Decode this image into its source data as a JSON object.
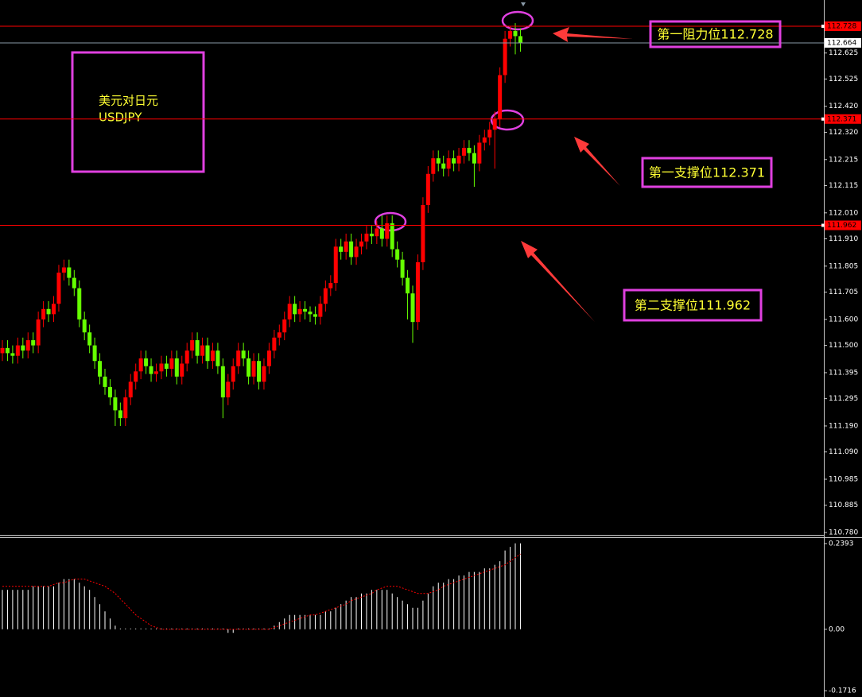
{
  "chart_data": [
    {
      "type": "candlestick",
      "title": "美元对日元",
      "subtitle": "USDJPY",
      "up_color": "#ff0000",
      "down_color": "#66ff00",
      "open": [
        111.47,
        111.49,
        111.47,
        111.46,
        111.5,
        111.48,
        111.52,
        111.5,
        111.6,
        111.64,
        111.62,
        111.66,
        111.78,
        111.8,
        111.76,
        111.72,
        111.6,
        111.55,
        111.5,
        111.44,
        111.38,
        111.34,
        111.3,
        111.25,
        111.22,
        111.3,
        111.36,
        111.4,
        111.45,
        111.42,
        111.39,
        111.4,
        111.43,
        111.41,
        111.45,
        111.38,
        111.43,
        111.48,
        111.52,
        111.46,
        111.5,
        111.44,
        111.48,
        111.42,
        111.3,
        111.36,
        111.42,
        111.48,
        111.45,
        111.38,
        111.44,
        111.36,
        111.42,
        111.48,
        111.53,
        111.55,
        111.6,
        111.66,
        111.62,
        111.64,
        111.63,
        111.62,
        111.61,
        111.66,
        111.72,
        111.74,
        111.88,
        111.86,
        111.9,
        111.84,
        111.88,
        111.9,
        111.93,
        111.92,
        111.95,
        111.91,
        111.97,
        111.87,
        111.83,
        111.76,
        111.7,
        111.59,
        111.82,
        112.04,
        112.16,
        112.22,
        112.2,
        112.18,
        112.22,
        112.2,
        112.23,
        112.26,
        112.24,
        112.2,
        112.28,
        112.3,
        112.33,
        112.37,
        112.54,
        112.68,
        112.71,
        112.69
      ],
      "high": [
        111.52,
        111.52,
        111.5,
        111.53,
        111.53,
        111.55,
        111.55,
        111.63,
        111.67,
        111.67,
        111.69,
        111.81,
        111.83,
        111.83,
        111.79,
        111.75,
        111.63,
        111.58,
        111.53,
        111.47,
        111.41,
        111.37,
        111.33,
        111.28,
        111.33,
        111.39,
        111.43,
        111.48,
        111.48,
        111.45,
        111.43,
        111.46,
        111.46,
        111.48,
        111.48,
        111.46,
        111.51,
        111.55,
        111.55,
        111.53,
        111.53,
        111.51,
        111.51,
        111.45,
        111.39,
        111.45,
        111.51,
        111.51,
        111.48,
        111.47,
        111.47,
        111.45,
        111.51,
        111.56,
        111.58,
        111.63,
        111.69,
        111.69,
        111.67,
        111.67,
        111.65,
        111.65,
        111.69,
        111.75,
        111.77,
        111.91,
        111.91,
        111.93,
        111.93,
        111.91,
        111.93,
        111.96,
        111.96,
        111.98,
        112.0,
        112.0,
        112.0,
        111.9,
        111.86,
        111.79,
        111.73,
        111.85,
        112.07,
        112.19,
        112.25,
        112.25,
        112.23,
        112.25,
        112.25,
        112.26,
        112.29,
        112.29,
        112.27,
        112.31,
        112.33,
        112.36,
        112.4,
        112.57,
        112.71,
        112.728,
        112.74,
        112.72
      ],
      "low": [
        111.44,
        111.44,
        111.43,
        111.43,
        111.45,
        111.45,
        111.47,
        111.47,
        111.57,
        111.59,
        111.59,
        111.63,
        111.75,
        111.73,
        111.69,
        111.57,
        111.52,
        111.47,
        111.41,
        111.35,
        111.31,
        111.27,
        111.19,
        111.19,
        111.19,
        111.27,
        111.33,
        111.37,
        111.39,
        111.36,
        111.36,
        111.37,
        111.38,
        111.38,
        111.35,
        111.35,
        111.4,
        111.45,
        111.43,
        111.43,
        111.41,
        111.41,
        111.39,
        111.22,
        111.27,
        111.33,
        111.39,
        111.42,
        111.35,
        111.35,
        111.33,
        111.33,
        111.39,
        111.45,
        111.5,
        111.52,
        111.57,
        111.59,
        111.59,
        111.6,
        111.59,
        111.58,
        111.58,
        111.63,
        111.69,
        111.71,
        111.83,
        111.83,
        111.81,
        111.81,
        111.85,
        111.87,
        111.89,
        111.89,
        111.88,
        111.88,
        111.84,
        111.8,
        111.73,
        111.6,
        111.51,
        111.56,
        111.79,
        112.01,
        112.13,
        112.17,
        112.15,
        112.15,
        112.17,
        112.17,
        112.2,
        112.21,
        112.11,
        112.17,
        112.25,
        112.27,
        112.18,
        112.34,
        112.51,
        112.65,
        112.62,
        112.63
      ],
      "close": [
        111.49,
        111.47,
        111.46,
        111.5,
        111.48,
        111.52,
        111.5,
        111.6,
        111.64,
        111.62,
        111.66,
        111.78,
        111.8,
        111.76,
        111.72,
        111.6,
        111.55,
        111.5,
        111.44,
        111.38,
        111.34,
        111.3,
        111.25,
        111.22,
        111.3,
        111.36,
        111.4,
        111.45,
        111.42,
        111.39,
        111.4,
        111.43,
        111.41,
        111.45,
        111.38,
        111.43,
        111.48,
        111.52,
        111.46,
        111.5,
        111.44,
        111.48,
        111.42,
        111.3,
        111.36,
        111.42,
        111.48,
        111.45,
        111.38,
        111.44,
        111.36,
        111.42,
        111.48,
        111.53,
        111.55,
        111.6,
        111.66,
        111.62,
        111.64,
        111.63,
        111.62,
        111.61,
        111.66,
        111.72,
        111.74,
        111.88,
        111.86,
        111.9,
        111.84,
        111.88,
        111.9,
        111.93,
        111.92,
        111.95,
        111.91,
        111.97,
        111.87,
        111.83,
        111.76,
        111.7,
        111.59,
        111.82,
        112.04,
        112.16,
        112.22,
        112.2,
        112.18,
        112.22,
        112.2,
        112.23,
        112.26,
        112.24,
        112.2,
        112.28,
        112.3,
        112.33,
        112.37,
        112.54,
        112.68,
        112.71,
        112.69,
        112.664
      ],
      "ylim": [
        110.774,
        112.829
      ],
      "yticks": [
        112.625,
        112.525,
        {
          "value": 112.42,
          "label": "112.420"
        },
        {
          "value": 112.32,
          "label": "112.320"
        },
        112.215,
        112.115,
        {
          "value": 112.01,
          "label": "112.010"
        },
        {
          "value": 111.91,
          "label": "111.910"
        },
        111.805,
        111.705,
        {
          "value": 111.6,
          "label": "111.600"
        },
        {
          "value": 111.5,
          "label": "111.500"
        },
        111.395,
        111.295,
        {
          "value": 111.19,
          "label": "111.190"
        },
        {
          "value": 111.09,
          "label": "111.090"
        },
        110.985,
        110.885,
        {
          "value": 110.78,
          "label": "110.780"
        }
      ],
      "levels": [
        {
          "value": 112.728,
          "text": "第一阻力位112.728",
          "color": "#ff0000"
        },
        {
          "value": 112.371,
          "text": "第一支撑位112.371",
          "color": "#ff0000"
        },
        {
          "value": 111.962,
          "text": "第二支撑位111.962",
          "color": "#ff0000"
        }
      ],
      "last_line_color": "#8a9aa8"
    },
    {
      "type": "histogram",
      "series": [
        {
          "type": "bar",
          "color": "#ffffff",
          "values": [
            0.11,
            0.11,
            0.11,
            0.11,
            0.11,
            0.11,
            0.12,
            0.12,
            0.12,
            0.12,
            0.12,
            0.13,
            0.14,
            0.14,
            0.14,
            0.13,
            0.12,
            0.11,
            0.09,
            0.07,
            0.05,
            0.03,
            0.01,
            0,
            0,
            0,
            0,
            0,
            0,
            0,
            0,
            0,
            0,
            0,
            0,
            0,
            0,
            0,
            0,
            0,
            0,
            0,
            0,
            0,
            -0.01,
            -0.01,
            0,
            0,
            0,
            0,
            0,
            0,
            0,
            0.01,
            0.02,
            0.03,
            0.04,
            0.04,
            0.04,
            0.04,
            0.04,
            0.04,
            0.04,
            0.05,
            0.05,
            0.06,
            0.07,
            0.08,
            0.09,
            0.09,
            0.1,
            0.1,
            0.11,
            0.11,
            0.11,
            0.11,
            0.1,
            0.09,
            0.08,
            0.07,
            0.06,
            0.06,
            0.08,
            0.1,
            0.12,
            0.13,
            0.13,
            0.14,
            0.14,
            0.15,
            0.15,
            0.16,
            0.16,
            0.16,
            0.17,
            0.17,
            0.18,
            0.19,
            0.22,
            0.23,
            0.24,
            0.24
          ]
        },
        {
          "type": "line",
          "color": "#ff0000",
          "dashed": true,
          "values": [
            0.12,
            0.12,
            0.12,
            0.12,
            0.12,
            0.12,
            0.12,
            0.12,
            0.12,
            0.12,
            0.125,
            0.13,
            0.13,
            0.135,
            0.14,
            0.14,
            0.14,
            0.135,
            0.13,
            0.125,
            0.12,
            0.11,
            0.1,
            0.085,
            0.07,
            0.055,
            0.04,
            0.03,
            0.02,
            0.01,
            0.005,
            0,
            0,
            0,
            0,
            0,
            0,
            0,
            0,
            0,
            0,
            0,
            0,
            0,
            0,
            0,
            0,
            0,
            0,
            0,
            0,
            0,
            0,
            0.005,
            0.01,
            0.015,
            0.02,
            0.025,
            0.03,
            0.035,
            0.04,
            0.04,
            0.045,
            0.05,
            0.055,
            0.06,
            0.065,
            0.07,
            0.08,
            0.085,
            0.09,
            0.095,
            0.1,
            0.11,
            0.115,
            0.12,
            0.12,
            0.12,
            0.115,
            0.11,
            0.105,
            0.1,
            0.1,
            0.1,
            0.105,
            0.11,
            0.12,
            0.125,
            0.13,
            0.135,
            0.14,
            0.145,
            0.15,
            0.155,
            0.16,
            0.165,
            0.17,
            0.175,
            0.18,
            0.19,
            0.2,
            0.21
          ]
        }
      ],
      "ylim": [
        -0.1892,
        0.2547
      ],
      "yticks": [
        0.2393,
        {
          "value": 0,
          "label": "0.00"
        },
        -0.1716
      ]
    }
  ]
}
